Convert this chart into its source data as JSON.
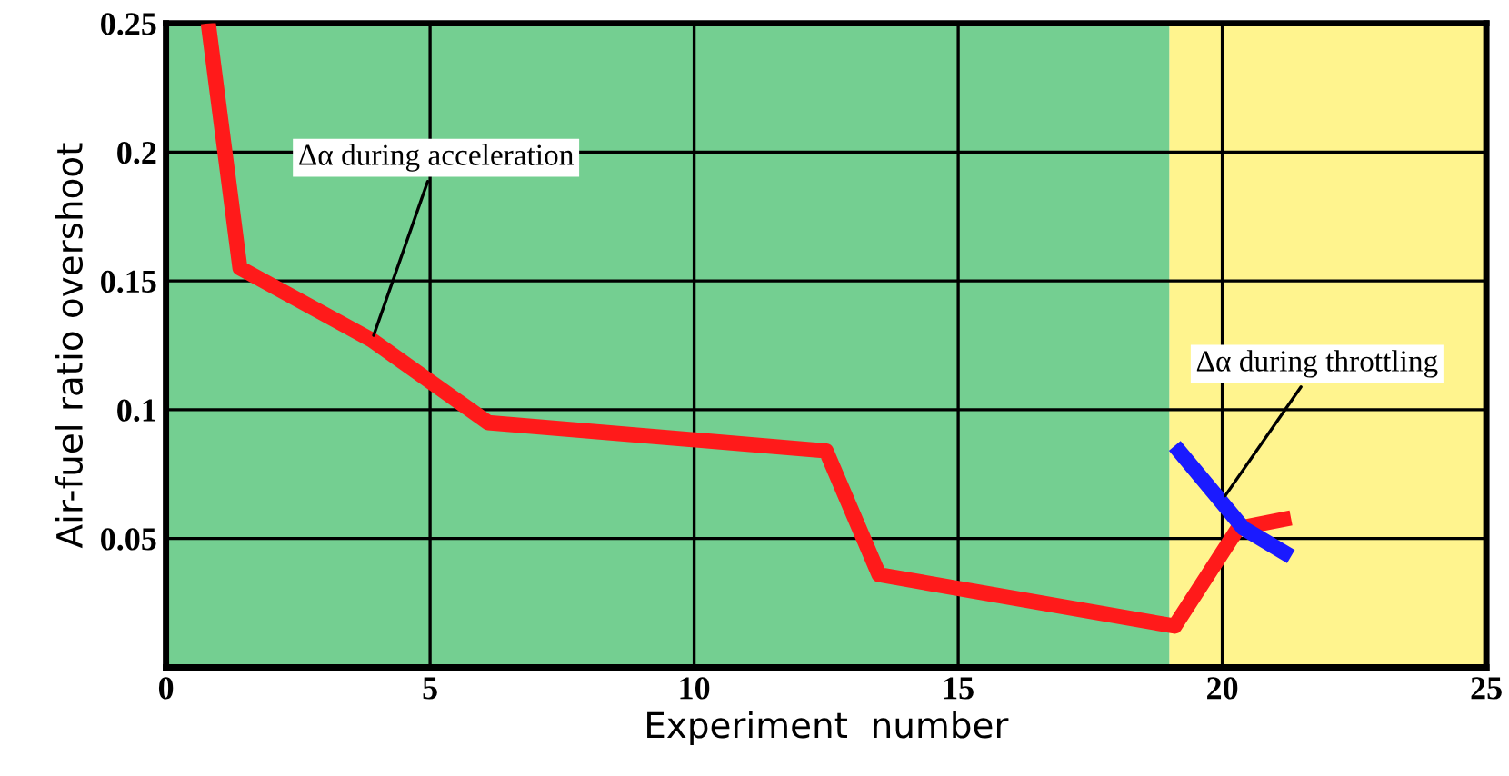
{
  "chart_data": {
    "type": "line",
    "xlabel": "Experiment  number",
    "ylabel": "Air-fuel ratio overshoot",
    "xlim": [
      0,
      25
    ],
    "ylim": [
      0,
      0.25
    ],
    "xticks": [
      0,
      5,
      10,
      15,
      20,
      25
    ],
    "yticks": [
      0.05,
      0.1,
      0.15,
      0.2,
      0.25
    ],
    "grid": true,
    "marker": "none",
    "line_style": "solid",
    "series": [
      {
        "color": "#ff1a1a",
        "x": [
          0.8,
          1.4,
          3.9,
          6.1,
          12.5,
          13.5,
          19.1,
          20.3,
          21.3
        ],
        "values": [
          0.25,
          0.155,
          0.127,
          0.095,
          0.084,
          0.036,
          0.016,
          0.054,
          0.058
        ]
      },
      {
        "color": "#1a1aff",
        "x": [
          19.1,
          20.4,
          21.3
        ],
        "values": [
          0.086,
          0.054,
          0.043
        ]
      }
    ],
    "bands": [
      {
        "axis": "x",
        "from": 0,
        "to": 19,
        "color": "#5cc77e"
      },
      {
        "axis": "x",
        "from": 19,
        "to": 25,
        "color": "#fff27a"
      }
    ],
    "annotations": [
      {
        "text": "Δα during acceleration",
        "x": 3.9,
        "y": 0.127
      },
      {
        "text": "Δα during throttling",
        "x": 20.0,
        "y": 0.065
      }
    ]
  }
}
